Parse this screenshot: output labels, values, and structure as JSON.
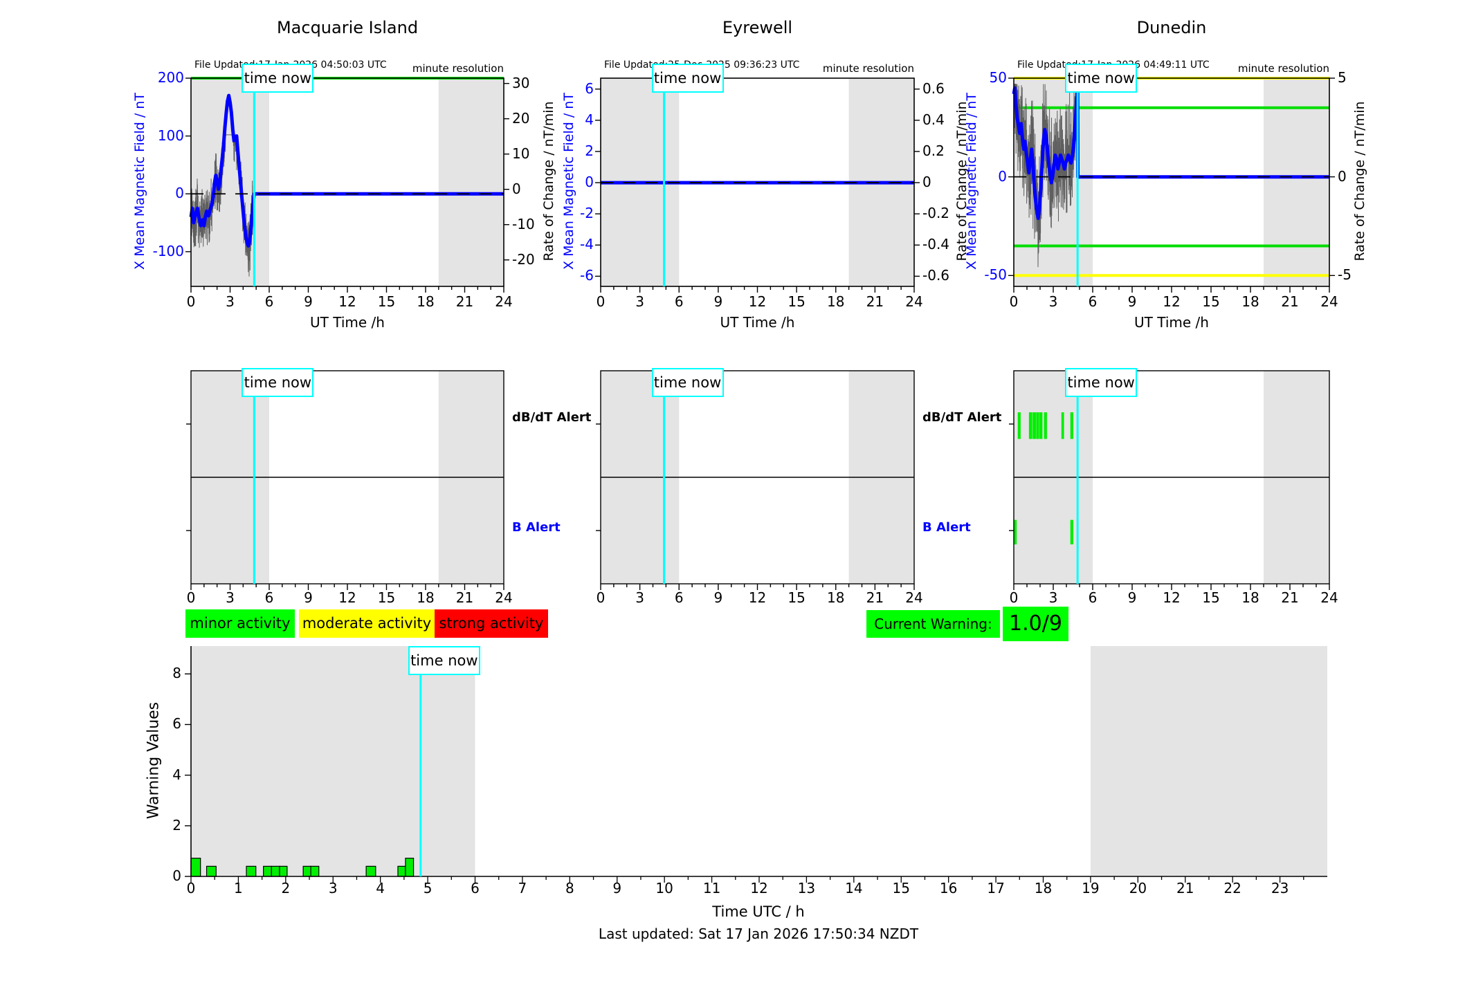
{
  "time_now_label": "time now",
  "alert_row_labels": {
    "dbdt": "dB/dT Alert",
    "b": "B Alert"
  },
  "legend": {
    "items": [
      {
        "label": "minor activity",
        "color": "#00ff00"
      },
      {
        "label": "moderate activity",
        "color": "#ffff00"
      },
      {
        "label": "strong activity",
        "color": "#ff0000"
      }
    ]
  },
  "current_warning": {
    "label": "Current Warning:",
    "value": "1.0/9",
    "color": "#00ff00"
  },
  "footer": {
    "last_updated": "Last updated: Sat 17 Jan 2026 17:50:34 NZDT"
  },
  "colors": {
    "night": "#e4e4e4",
    "trace_blue": "#0000ff",
    "noise_gray": "#5f5f5f",
    "time_now": "#00ffff",
    "threshold_green": "#00dd00",
    "threshold_yellow": "#ffff00",
    "alert_bar_green": "#00ee00",
    "axis": "#000000",
    "blue_text": "#0000ff"
  },
  "chart_data": [
    {
      "type": "line",
      "station": "Macquarie Island",
      "file_updated": "File Updated:17-Jan-2026 04:50:03 UTC",
      "resolution_note": "minute resolution",
      "x_axis": {
        "label": "UT Time /h",
        "ticks": [
          0,
          3,
          6,
          9,
          12,
          15,
          18,
          21,
          24
        ],
        "range": [
          0,
          24
        ]
      },
      "y_left": {
        "label": "X Mean Magnetic Field / nT",
        "ticks": [
          200,
          100,
          0,
          -100
        ],
        "range": [
          -160,
          200
        ]
      },
      "y_right": {
        "label": "Rate of Change / nT/min",
        "ticks": [
          30,
          20,
          10,
          0,
          -10,
          -20
        ],
        "range": [
          -27.5,
          31.5
        ]
      },
      "night_shading": [
        [
          0,
          6
        ],
        [
          19,
          24
        ]
      ],
      "time_now": 4.85,
      "thresholds": [
        {
          "value": 200,
          "color_key": "threshold_green"
        }
      ],
      "trace": [
        [
          0,
          -40
        ],
        [
          0.1,
          -25
        ],
        [
          0.2,
          -50
        ],
        [
          0.35,
          -35
        ],
        [
          0.5,
          -25
        ],
        [
          0.6,
          -40
        ],
        [
          0.75,
          -55
        ],
        [
          0.9,
          -45
        ],
        [
          1.0,
          -55
        ],
        [
          1.1,
          -40
        ],
        [
          1.2,
          -30
        ],
        [
          1.35,
          -38
        ],
        [
          1.5,
          -25
        ],
        [
          1.6,
          -18
        ],
        [
          1.7,
          -5
        ],
        [
          1.8,
          18
        ],
        [
          1.9,
          32
        ],
        [
          2.0,
          22
        ],
        [
          2.1,
          8
        ],
        [
          2.2,
          18
        ],
        [
          2.3,
          40
        ],
        [
          2.4,
          62
        ],
        [
          2.5,
          85
        ],
        [
          2.6,
          115
        ],
        [
          2.7,
          140
        ],
        [
          2.8,
          160
        ],
        [
          2.9,
          170
        ],
        [
          3.0,
          158
        ],
        [
          3.1,
          140
        ],
        [
          3.2,
          112
        ],
        [
          3.3,
          92
        ],
        [
          3.4,
          96
        ],
        [
          3.5,
          100
        ],
        [
          3.6,
          72
        ],
        [
          3.7,
          45
        ],
        [
          3.8,
          20
        ],
        [
          3.9,
          -5
        ],
        [
          4.0,
          -30
        ],
        [
          4.1,
          -55
        ],
        [
          4.2,
          -72
        ],
        [
          4.3,
          -85
        ],
        [
          4.4,
          -90
        ],
        [
          4.5,
          -82
        ],
        [
          4.6,
          -60
        ],
        [
          4.7,
          -35
        ],
        [
          4.8,
          -10
        ],
        [
          4.85,
          0
        ],
        [
          24,
          0
        ]
      ],
      "noise": {
        "amplitude": 62,
        "min": -152,
        "max": 102,
        "seed": 20260117,
        "end": 4.85
      },
      "alerts": {
        "dbdt": [],
        "b": []
      }
    },
    {
      "type": "line",
      "station": "Eyrewell",
      "file_updated": "File Updated:25-Dec-2025 09:36:23 UTC",
      "resolution_note": "minute resolution",
      "x_axis": {
        "label": "UT Time /h",
        "ticks": [
          0,
          3,
          6,
          9,
          12,
          15,
          18,
          21,
          24
        ],
        "range": [
          0,
          24
        ]
      },
      "y_left": {
        "label": "X Mean Magnetic Field / nT",
        "ticks": [
          6,
          4,
          2,
          0,
          -2,
          -4,
          -6
        ],
        "range": [
          -6.65,
          6.7
        ]
      },
      "y_right": {
        "label": "Rate of Change / nT/min",
        "ticks": [
          0.6,
          0.4,
          0.2,
          0,
          -0.2,
          -0.4,
          -0.6
        ],
        "range": [
          -0.665,
          0.67
        ]
      },
      "night_shading": [
        [
          0,
          6
        ],
        [
          19,
          24
        ]
      ],
      "time_now": 4.85,
      "thresholds": [],
      "trace": [
        [
          0,
          0
        ],
        [
          24,
          0
        ]
      ],
      "noise": {
        "amplitude": 0,
        "min": 0,
        "max": 0,
        "seed": 1,
        "end": 0
      },
      "alerts": {
        "dbdt": [],
        "b": []
      }
    },
    {
      "type": "line",
      "station": "Dunedin",
      "file_updated": "File Updated:17-Jan-2026 04:49:11 UTC",
      "resolution_note": "minute resolution",
      "x_axis": {
        "label": "UT Time /h",
        "ticks": [
          0,
          3,
          6,
          9,
          12,
          15,
          18,
          21,
          24
        ],
        "range": [
          0,
          24
        ]
      },
      "y_left": {
        "label": "X Mean Magnetic Field / nT",
        "ticks": [
          50,
          0,
          -50
        ],
        "range": [
          -55.5,
          50
        ]
      },
      "y_right": {
        "label": "Rate of Change / nT/min",
        "ticks": [
          5,
          0,
          -5
        ],
        "range": [
          -5.55,
          5
        ]
      },
      "night_shading": [
        [
          0,
          6
        ],
        [
          19,
          24
        ]
      ],
      "time_now": 4.85,
      "thresholds": [
        {
          "value": 50,
          "color_key": "threshold_yellow"
        },
        {
          "value": -50,
          "color_key": "threshold_yellow"
        },
        {
          "value": 35,
          "color_key": "threshold_green"
        },
        {
          "value": -35,
          "color_key": "threshold_green"
        }
      ],
      "trace": [
        [
          0,
          42
        ],
        [
          0.08,
          45
        ],
        [
          0.15,
          38
        ],
        [
          0.25,
          30
        ],
        [
          0.35,
          26
        ],
        [
          0.45,
          22
        ],
        [
          0.55,
          27
        ],
        [
          0.65,
          20
        ],
        [
          0.75,
          14
        ],
        [
          0.85,
          18
        ],
        [
          0.95,
          12
        ],
        [
          1.05,
          7
        ],
        [
          1.15,
          2
        ],
        [
          1.25,
          8
        ],
        [
          1.35,
          14
        ],
        [
          1.45,
          8
        ],
        [
          1.55,
          -4
        ],
        [
          1.7,
          -15
        ],
        [
          1.85,
          -21
        ],
        [
          1.95,
          -16
        ],
        [
          2.05,
          -6
        ],
        [
          2.15,
          6
        ],
        [
          2.25,
          18
        ],
        [
          2.35,
          24
        ],
        [
          2.45,
          21
        ],
        [
          2.55,
          14
        ],
        [
          2.65,
          7
        ],
        [
          2.75,
          2
        ],
        [
          2.85,
          -3
        ],
        [
          2.95,
          0
        ],
        [
          3.05,
          6
        ],
        [
          3.15,
          11
        ],
        [
          3.25,
          9
        ],
        [
          3.35,
          4
        ],
        [
          3.45,
          7
        ],
        [
          3.55,
          11
        ],
        [
          3.65,
          9
        ],
        [
          3.75,
          7
        ],
        [
          3.85,
          4
        ],
        [
          3.95,
          7
        ],
        [
          4.05,
          9
        ],
        [
          4.15,
          11
        ],
        [
          4.25,
          9
        ],
        [
          4.35,
          7
        ],
        [
          4.45,
          10
        ],
        [
          4.55,
          16
        ],
        [
          4.65,
          25
        ],
        [
          4.75,
          35
        ],
        [
          4.82,
          44
        ],
        [
          4.85,
          45
        ],
        [
          4.87,
          0
        ],
        [
          24,
          0
        ]
      ],
      "noise": {
        "amplitude": 34,
        "min": -52,
        "max": 47,
        "seed": 777,
        "end": 4.85
      },
      "alerts": {
        "dbdt": [
          [
            0.3,
            0.52
          ],
          [
            1.15,
            1.4
          ],
          [
            1.43,
            1.68
          ],
          [
            1.7,
            1.93
          ],
          [
            1.95,
            2.18
          ],
          [
            2.3,
            2.52
          ],
          [
            3.62,
            3.82
          ],
          [
            4.3,
            4.52
          ]
        ],
        "b": [
          [
            0,
            0.22
          ],
          [
            4.3,
            4.52
          ]
        ]
      }
    },
    {
      "type": "bar",
      "y_axis": {
        "label": "Warning Values",
        "ticks": [
          0,
          2,
          4,
          6,
          8
        ],
        "range": [
          0,
          9.1
        ]
      },
      "x_axis": {
        "label": "Time UTC / h",
        "ticks": [
          0,
          1,
          2,
          3,
          4,
          5,
          6,
          7,
          8,
          9,
          10,
          11,
          12,
          13,
          14,
          15,
          16,
          17,
          18,
          19,
          20,
          21,
          22,
          23
        ],
        "range": [
          0,
          24
        ]
      },
      "night_shading": [
        [
          0,
          6
        ],
        [
          19,
          24
        ]
      ],
      "time_now": 4.85,
      "bars": [
        {
          "x0": 0.0,
          "x1": 0.2,
          "value": 0.72
        },
        {
          "x0": 0.33,
          "x1": 0.53,
          "value": 0.4
        },
        {
          "x0": 1.17,
          "x1": 1.37,
          "value": 0.4
        },
        {
          "x0": 1.53,
          "x1": 1.7,
          "value": 0.4
        },
        {
          "x0": 1.7,
          "x1": 1.87,
          "value": 0.4
        },
        {
          "x0": 1.87,
          "x1": 2.03,
          "value": 0.4
        },
        {
          "x0": 2.37,
          "x1": 2.53,
          "value": 0.4
        },
        {
          "x0": 2.53,
          "x1": 2.7,
          "value": 0.4
        },
        {
          "x0": 3.7,
          "x1": 3.9,
          "value": 0.4
        },
        {
          "x0": 4.37,
          "x1": 4.53,
          "value": 0.4
        },
        {
          "x0": 4.53,
          "x1": 4.7,
          "value": 0.72
        }
      ]
    }
  ]
}
